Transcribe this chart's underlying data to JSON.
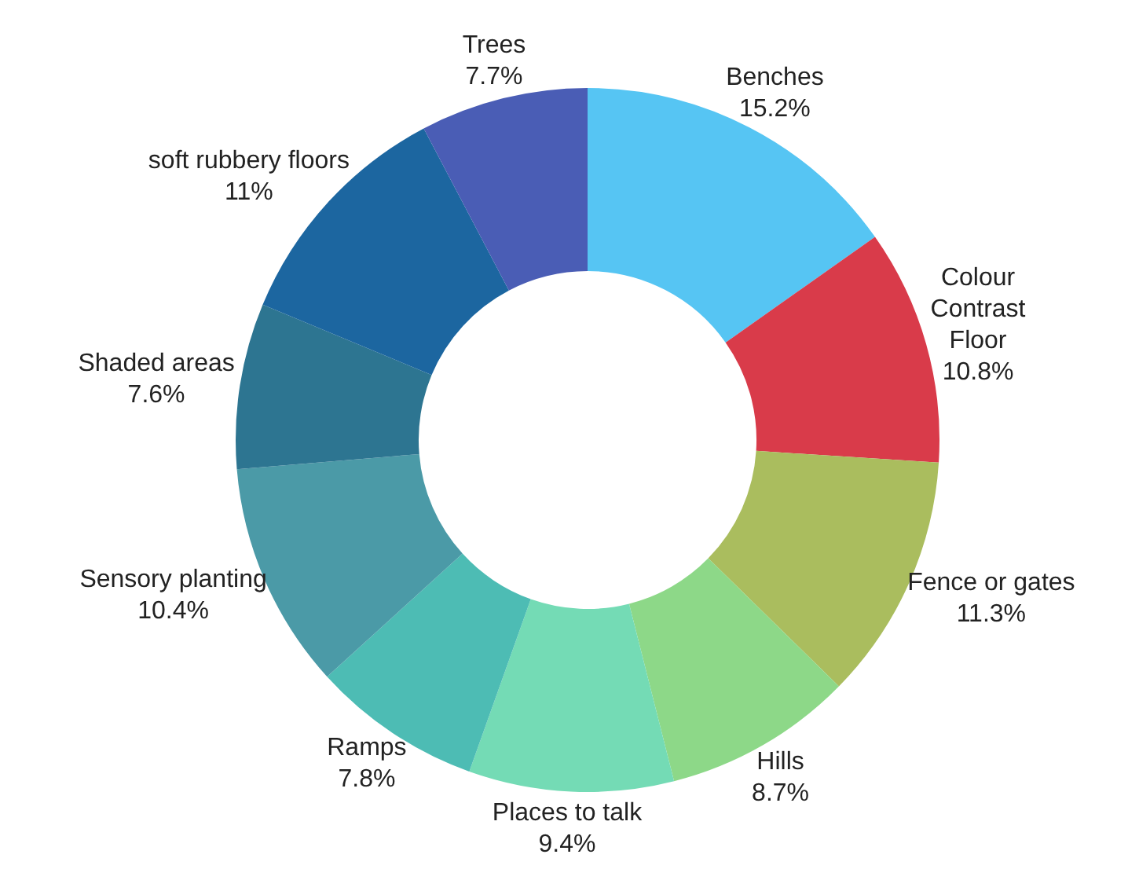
{
  "chart_data": {
    "type": "donut",
    "categories": [
      "Benches",
      "Colour Contrast Floor",
      "Fence or gates",
      "Hills",
      "Places to talk",
      "Ramps",
      "Sensory planting",
      "Shaded areas",
      "soft rubbery floors",
      "Trees"
    ],
    "values": [
      15.2,
      10.8,
      11.3,
      8.7,
      9.4,
      7.8,
      10.4,
      7.6,
      11,
      7.7
    ],
    "value_labels": [
      "15.2%",
      "10.8%",
      "11.3%",
      "8.7%",
      "9.4%",
      "7.8%",
      "10.4%",
      "7.6%",
      "11%",
      "7.7%"
    ],
    "colors": [
      "#56c5f3",
      "#d93b4a",
      "#aabd5e",
      "#8dd888",
      "#74dbb5",
      "#4dbcb4",
      "#4b9aa7",
      "#2d7591",
      "#1c66a0",
      "#4a5db5"
    ],
    "legend": false
  }
}
